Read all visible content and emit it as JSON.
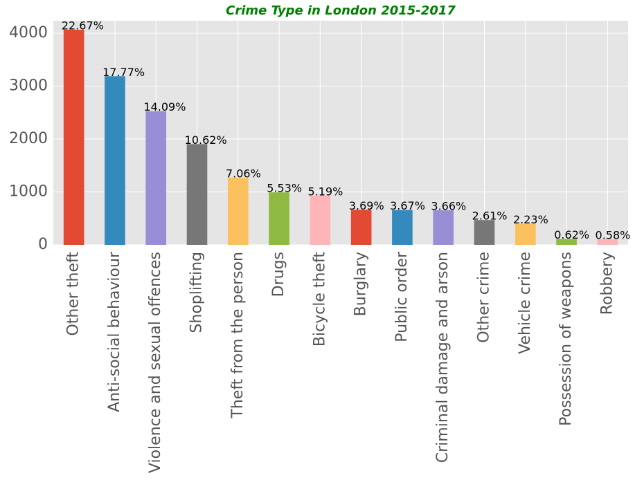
{
  "chart_data": {
    "type": "bar",
    "title": "Crime Type in London 2015-2017",
    "categories": [
      "Other theft",
      "Anti-social behaviour",
      "Violence and sexual offences",
      "Shoplifting",
      "Theft from the person",
      "Drugs",
      "Bicycle theft",
      "Burglary",
      "Public order",
      "Criminal damage and arson",
      "Other crime",
      "Vehicle crime",
      "Possession of weapons",
      "Robbery"
    ],
    "values": [
      4065,
      3186,
      2526,
      1904,
      1266,
      992,
      931,
      662,
      658,
      656,
      468,
      400,
      111,
      104
    ],
    "annotations": [
      "22.67%",
      "17.77%",
      "14.09%",
      "10.62%",
      "7.06%",
      "5.53%",
      "5.19%",
      "3.69%",
      "3.67%",
      "3.66%",
      "2.61%",
      "2.23%",
      "0.62%",
      "0.58%"
    ],
    "colors": [
      "#E24A33",
      "#348ABD",
      "#988ED5",
      "#777777",
      "#FBC15E",
      "#8EBA42",
      "#FFB5B8"
    ],
    "ylim": [
      0,
      4235
    ],
    "yticks": [
      0,
      1000,
      2000,
      3000,
      4000
    ],
    "grid": true
  }
}
